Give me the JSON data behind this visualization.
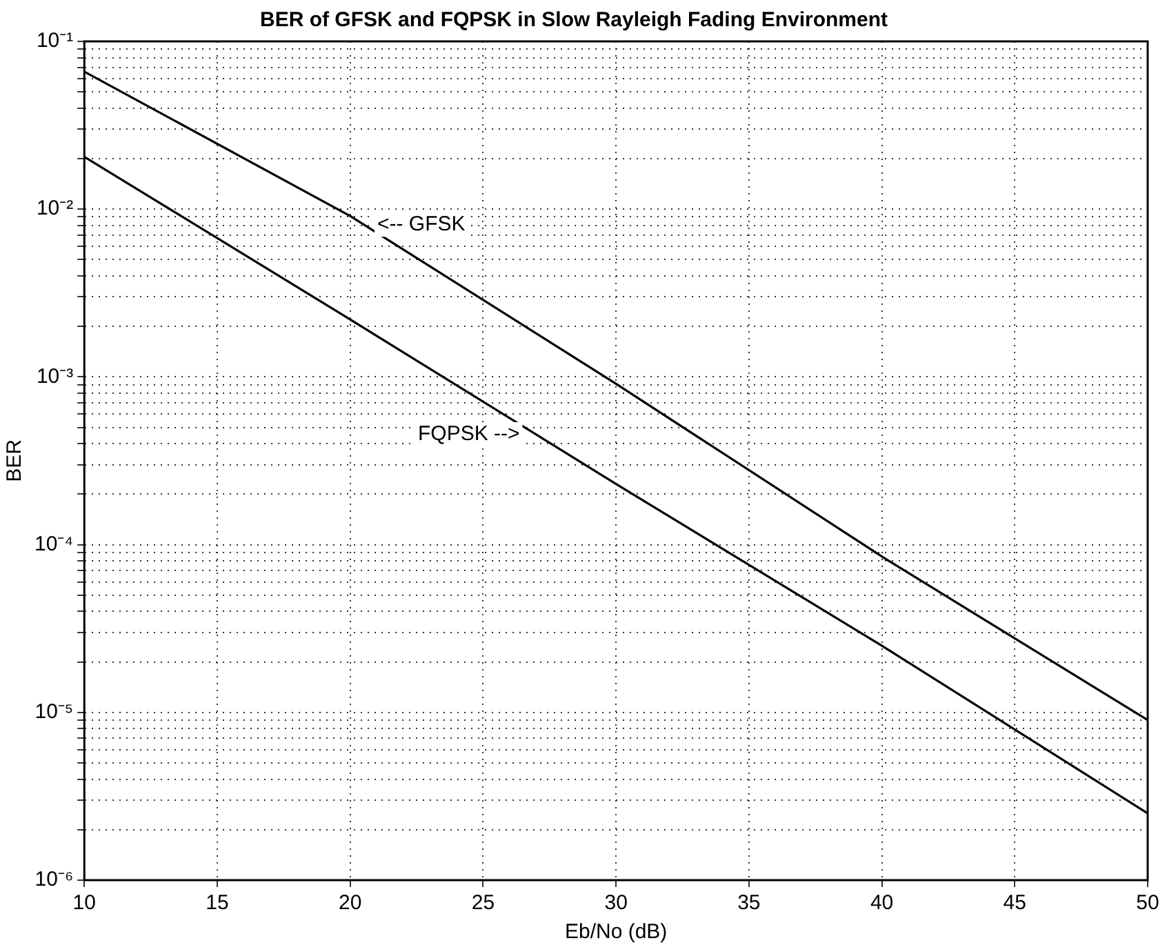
{
  "chart_data": {
    "type": "line",
    "title": "BER of GFSK and FQPSK in Slow Rayleigh Fading Environment",
    "xlabel": "Eb/No (dB)",
    "ylabel": "BER",
    "x": [
      10,
      20,
      30,
      40,
      50
    ],
    "series": [
      {
        "color": "#000000",
        "values": [
          0.066,
          0.0091,
          0.00091,
          8.5e-05,
          9e-06
        ]
      },
      {
        "color": "#000000",
        "values": [
          0.0205,
          0.0022,
          0.00023,
          2.5e-05,
          2.5e-06
        ]
      }
    ],
    "annotations": [
      "<-- GFSK",
      "FQPSK -->"
    ],
    "log": "y",
    "grid": true,
    "legend": false,
    "marker": "none",
    "line_style": "solid",
    "xlim": [
      10,
      50
    ],
    "xticks": [
      10,
      15,
      20,
      25,
      30,
      35,
      40,
      45,
      50
    ],
    "ylim": [
      1e-06,
      0.1
    ],
    "yticks": [
      {
        "value": 1e-06,
        "label": "10⁻⁶"
      },
      {
        "value": 2e-06,
        "label": null
      },
      {
        "value": 3e-06,
        "label": null
      },
      {
        "value": 4e-06,
        "label": null
      },
      {
        "value": 5e-06,
        "label": null
      },
      {
        "value": 6e-06,
        "label": null
      },
      {
        "value": 7e-06,
        "label": null
      },
      {
        "value": 8e-06,
        "label": null
      },
      {
        "value": 9e-06,
        "label": null
      },
      {
        "value": 1e-05,
        "label": "10⁻⁵"
      },
      {
        "value": 2e-05,
        "label": null
      },
      {
        "value": 3e-05,
        "label": null
      },
      {
        "value": 4e-05,
        "label": null
      },
      {
        "value": 5e-05,
        "label": null
      },
      {
        "value": 6e-05,
        "label": null
      },
      {
        "value": 7e-05,
        "label": null
      },
      {
        "value": 8e-05,
        "label": null
      },
      {
        "value": 9e-05,
        "label": null
      },
      {
        "value": 0.0001,
        "label": "10⁻⁴"
      },
      {
        "value": 0.0002,
        "label": null
      },
      {
        "value": 0.0003,
        "label": null
      },
      {
        "value": 0.0004,
        "label": null
      },
      {
        "value": 0.0005,
        "label": null
      },
      {
        "value": 0.0006,
        "label": null
      },
      {
        "value": 0.0007,
        "label": null
      },
      {
        "value": 0.0008,
        "label": null
      },
      {
        "value": 0.0009,
        "label": null
      },
      {
        "value": 0.001,
        "label": "10⁻³"
      },
      {
        "value": 0.002,
        "label": null
      },
      {
        "value": 0.003,
        "label": null
      },
      {
        "value": 0.004,
        "label": null
      },
      {
        "value": 0.005,
        "label": null
      },
      {
        "value": 0.006,
        "label": null
      },
      {
        "value": 0.007,
        "label": null
      },
      {
        "value": 0.008,
        "label": null
      },
      {
        "value": 0.009,
        "label": null
      },
      {
        "value": 0.01,
        "label": "10⁻²"
      },
      {
        "value": 0.02,
        "label": null
      },
      {
        "value": 0.03,
        "label": null
      },
      {
        "value": 0.04,
        "label": null
      },
      {
        "value": 0.05,
        "label": null
      },
      {
        "value": 0.06,
        "label": null
      },
      {
        "value": 0.07,
        "label": null
      },
      {
        "value": 0.08,
        "label": null
      },
      {
        "value": 0.09,
        "label": null
      },
      {
        "value": 0.1,
        "label": "10⁻¹"
      }
    ]
  }
}
